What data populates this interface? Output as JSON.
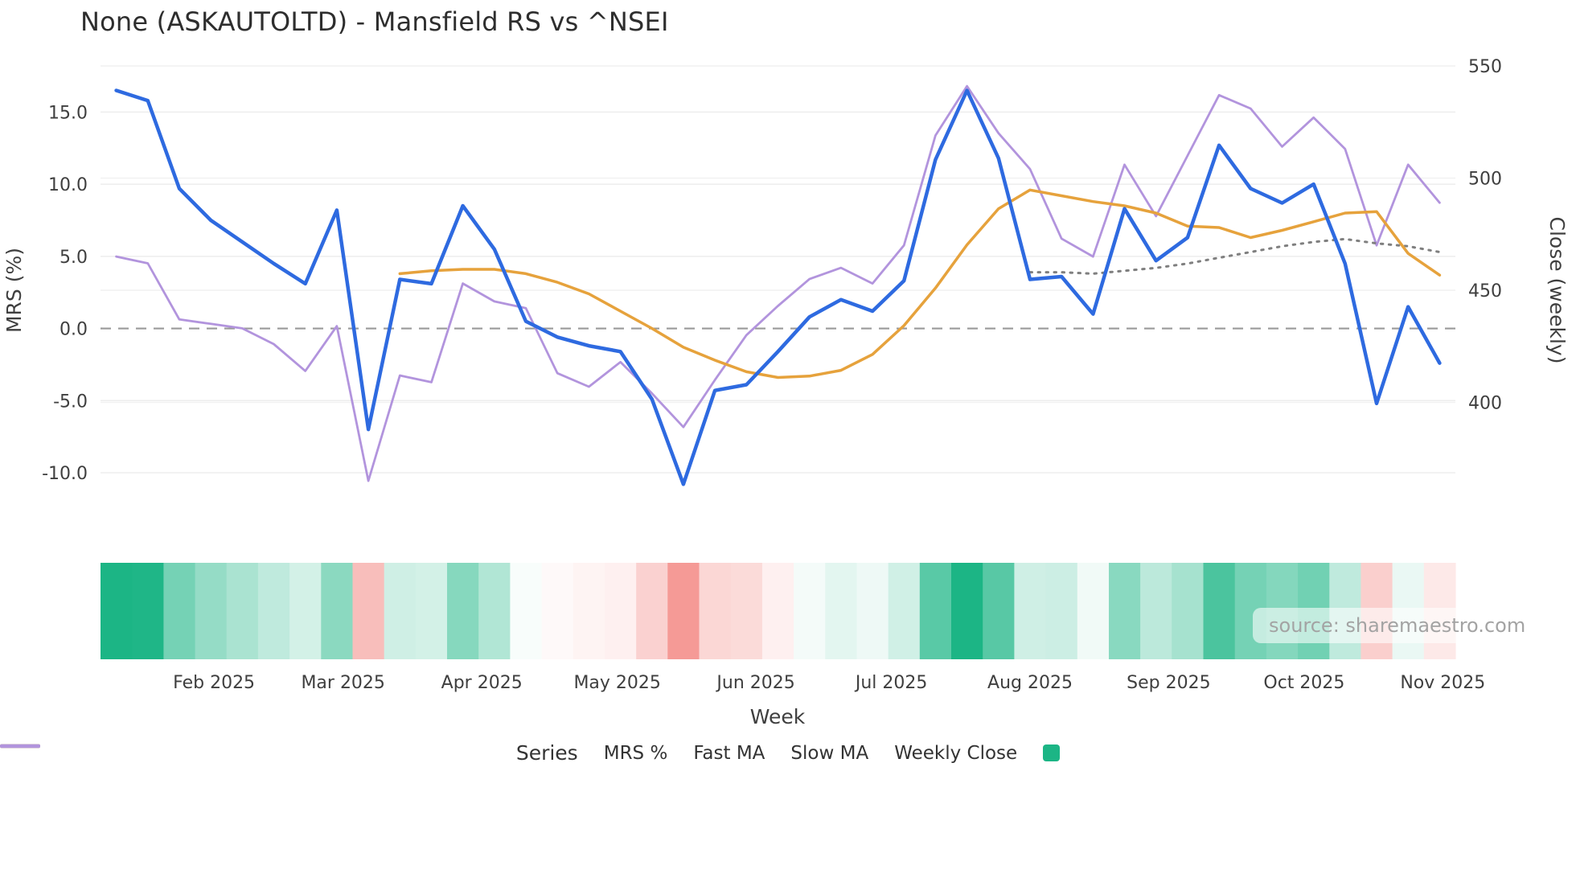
{
  "title": "None (ASKAUTOLTD) - Mansfield RS vs ^NSEI",
  "source": "source: sharemaestro.com",
  "legend": {
    "label": "Series",
    "items": [
      {
        "label": "MRS %",
        "color": "#2e6ae0",
        "style": "solid"
      },
      {
        "label": "Fast MA",
        "color": "#e6a23c",
        "style": "solid"
      },
      {
        "label": "Slow MA",
        "color": "#7f7f7f",
        "style": "dotted"
      },
      {
        "label": "Weekly Close",
        "color": "#b294dd",
        "style": "solid"
      },
      {
        "label": "",
        "color": "#1cb585",
        "style": "square"
      }
    ]
  },
  "chart_data": {
    "type": "line",
    "title": "None (ASKAUTOLTD) - Mansfield RS vs ^NSEI",
    "xlabel": "Week",
    "ylabel_left": "MRS (%)",
    "ylabel_right": "Close (weekly)",
    "n_weeks": 43,
    "ylim_left": [
      -12.9,
      18.2
    ],
    "ylim_right": [
      350,
      550
    ],
    "grid": true,
    "legend_position": "bottom-center",
    "yticks_left": [
      {
        "label": "15.0",
        "value": 15
      },
      {
        "label": "10.0",
        "value": 10
      },
      {
        "label": "5.0",
        "value": 5
      },
      {
        "label": "0.0",
        "value": 0
      },
      {
        "label": "-5.0",
        "value": -5
      },
      {
        "label": "-10.0",
        "value": -10
      }
    ],
    "yticks_right": [
      {
        "label": "550",
        "value": 550
      },
      {
        "label": "500",
        "value": 500
      },
      {
        "label": "450",
        "value": 450
      },
      {
        "label": "400",
        "value": 400
      }
    ],
    "x_month_ticks": [
      {
        "label": "Feb 2025",
        "week_index": 3.1
      },
      {
        "label": "Mar 2025",
        "week_index": 7.2
      },
      {
        "label": "Apr 2025",
        "week_index": 11.6
      },
      {
        "label": "May 2025",
        "week_index": 15.9
      },
      {
        "label": "Jun 2025",
        "week_index": 20.3
      },
      {
        "label": "Jul 2025",
        "week_index": 24.6
      },
      {
        "label": "Aug 2025",
        "week_index": 29.0
      },
      {
        "label": "Sep 2025",
        "week_index": 33.4
      },
      {
        "label": "Oct 2025",
        "week_index": 37.7
      },
      {
        "label": "Nov 2025",
        "week_index": 42.1
      }
    ],
    "zero_line": {
      "value": 0,
      "style": "dashed",
      "color": "#999999"
    },
    "series": [
      {
        "name": "MRS %",
        "axis": "left",
        "color": "#2e6ae0",
        "width": 4.5,
        "style": "solid",
        "values": [
          16.5,
          15.8,
          9.7,
          7.5,
          6.0,
          4.5,
          3.1,
          8.2,
          -7.0,
          3.4,
          3.1,
          8.5,
          5.5,
          0.5,
          -0.6,
          -1.2,
          -1.6,
          -4.9,
          -10.8,
          -4.3,
          -3.9,
          -1.6,
          0.8,
          2.0,
          1.2,
          3.3,
          11.7,
          16.5,
          11.8,
          3.4,
          3.6,
          1.0,
          8.3,
          4.7,
          6.3,
          12.7,
          9.7,
          8.7,
          10.0,
          4.5,
          -5.2,
          1.5,
          -2.4
        ]
      },
      {
        "name": "Fast MA",
        "axis": "left",
        "color": "#e6a23c",
        "width": 3.5,
        "style": "solid",
        "values": [
          null,
          null,
          null,
          null,
          null,
          null,
          null,
          null,
          null,
          3.8,
          4.0,
          4.1,
          4.1,
          3.8,
          3.2,
          2.4,
          1.2,
          0.0,
          -1.3,
          -2.2,
          -3.0,
          -3.4,
          -3.3,
          -2.9,
          -1.8,
          0.2,
          2.8,
          5.8,
          8.3,
          9.6,
          9.2,
          8.8,
          8.5,
          8.0,
          7.1,
          7.0,
          6.3,
          6.8,
          7.4,
          8.0,
          8.1,
          5.2,
          3.7
        ]
      },
      {
        "name": "Slow MA",
        "axis": "left",
        "color": "#7f7f7f",
        "width": 3,
        "style": "dotted",
        "values": [
          null,
          null,
          null,
          null,
          null,
          null,
          null,
          null,
          null,
          null,
          null,
          null,
          null,
          null,
          null,
          null,
          null,
          null,
          null,
          null,
          null,
          null,
          null,
          null,
          null,
          null,
          null,
          null,
          null,
          3.9,
          3.9,
          3.8,
          4.0,
          4.2,
          4.5,
          4.9,
          5.3,
          5.7,
          6.0,
          6.2,
          5.9,
          5.7,
          5.3
        ]
      },
      {
        "name": "Weekly Close",
        "axis": "right",
        "color": "#b294dd",
        "width": 2.8,
        "style": "solid",
        "values": [
          465,
          462,
          437,
          435,
          433,
          426,
          414,
          434,
          365,
          412,
          409,
          453,
          445,
          442,
          413,
          407,
          418,
          404,
          389,
          410,
          430,
          443,
          455,
          460,
          453,
          470,
          519,
          541,
          520,
          504,
          473,
          465,
          506,
          483,
          510,
          537,
          531,
          514,
          527,
          513,
          470,
          506,
          489
        ]
      }
    ],
    "heatmap_strip": {
      "based_on": "MRS %",
      "positive_color": "#1cb585",
      "negative_color": "#f06a64",
      "scale_max": 16
    }
  }
}
